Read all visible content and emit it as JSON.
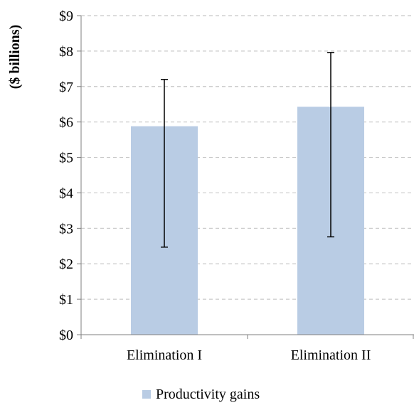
{
  "chart_data": {
    "type": "bar",
    "title": "",
    "xlabel": "",
    "ylabel": "($ billions)",
    "categories": [
      "Elimination I",
      "Elimination II"
    ],
    "series": [
      {
        "name": "Productivity gains",
        "color": "#b9cce4",
        "values": [
          5.88,
          6.43
        ],
        "error_low": [
          2.47,
          2.76
        ],
        "error_high": [
          7.2,
          7.96
        ]
      }
    ],
    "ylim": [
      0,
      9
    ],
    "yticks": [
      0,
      1,
      2,
      3,
      4,
      5,
      6,
      7,
      8,
      9
    ],
    "ytick_labels": [
      "$0",
      "$1",
      "$2",
      "$3",
      "$4",
      "$5",
      "$6",
      "$7",
      "$8",
      "$9"
    ],
    "grid": true,
    "grid_style": "dashed",
    "legend_position": "bottom"
  }
}
